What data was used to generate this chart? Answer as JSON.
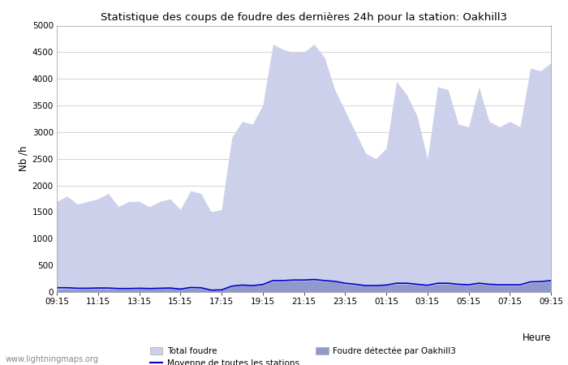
{
  "title": "Statistique des coups de foudre des dernières 24h pour la station: Oakhill3",
  "xlabel": "Heure",
  "ylabel": "Nb /h",
  "watermark": "www.lightningmaps.org",
  "x_labels": [
    "09:15",
    "11:15",
    "13:15",
    "15:15",
    "17:15",
    "19:15",
    "21:15",
    "23:15",
    "01:15",
    "03:15",
    "05:15",
    "07:15",
    "09:15"
  ],
  "ylim": [
    0,
    5000
  ],
  "yticks": [
    0,
    500,
    1000,
    1500,
    2000,
    2500,
    3000,
    3500,
    4000,
    4500,
    5000
  ],
  "total_foudre_color": "#cdd0eb",
  "oakhill_color": "#9099cc",
  "moyenne_color": "#0000cc",
  "background_color": "#ffffff",
  "legend_total": "Total foudre",
  "legend_moyenne": "Moyenne de toutes les stations",
  "legend_oakhill": "Foudre détectée par Oakhill3",
  "total_foudre": [
    1700,
    1800,
    1650,
    1700,
    1750,
    1850,
    1600,
    1700,
    1700,
    1600,
    1700,
    1750,
    1550,
    1900,
    1850,
    1500,
    1550,
    2900,
    3200,
    3150,
    3500,
    4650,
    4550,
    4500,
    4500,
    4650,
    4400,
    3800,
    3400,
    3000,
    2600,
    2500,
    2700,
    3950,
    3700,
    3300,
    2500,
    3850,
    3800,
    3150,
    3100,
    3850,
    3200,
    3100,
    3200,
    3100,
    4200,
    4150,
    4300
  ],
  "oakhill_foudre": [
    50,
    60,
    50,
    55,
    60,
    55,
    50,
    50,
    60,
    55,
    60,
    65,
    50,
    70,
    65,
    30,
    35,
    100,
    120,
    110,
    130,
    200,
    200,
    210,
    210,
    220,
    200,
    190,
    150,
    130,
    110,
    110,
    120,
    150,
    150,
    130,
    110,
    150,
    150,
    130,
    120,
    150,
    130,
    120,
    120,
    120,
    170,
    180,
    200
  ],
  "moyenne": [
    80,
    80,
    70,
    70,
    75,
    75,
    65,
    65,
    70,
    65,
    70,
    75,
    55,
    85,
    80,
    35,
    40,
    110,
    130,
    120,
    140,
    215,
    215,
    225,
    225,
    235,
    215,
    200,
    165,
    145,
    120,
    120,
    130,
    165,
    165,
    145,
    125,
    165,
    165,
    145,
    135,
    165,
    145,
    135,
    135,
    135,
    190,
    195,
    215
  ]
}
